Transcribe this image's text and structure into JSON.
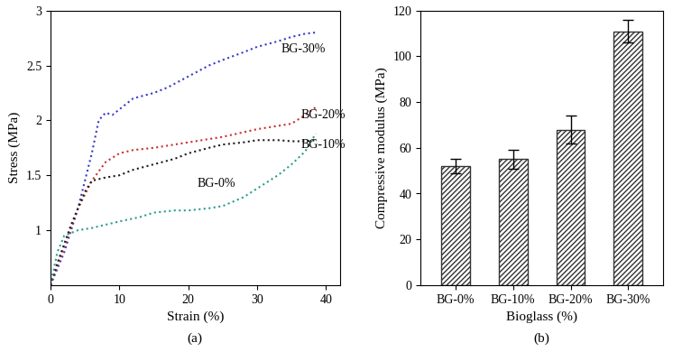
{
  "chart_data": [
    {
      "type": "line",
      "caption": "(a)",
      "x_label": "Strain (%)",
      "y_label": "Stress (MPa)",
      "xlim": [
        0,
        42
      ],
      "xticks": [
        0,
        10,
        20,
        30,
        40
      ],
      "ylim": [
        0.5,
        3
      ],
      "yticks": [
        1,
        1.5,
        2,
        2.5,
        3
      ],
      "line_style": "dotted",
      "series": [
        {
          "name": "BG-30%",
          "color": "#3a3ac8",
          "x": [
            0,
            2,
            4,
            6,
            7,
            8,
            9,
            10,
            12,
            15,
            17,
            20,
            23,
            25,
            28,
            30,
            33,
            35,
            37,
            38.5
          ],
          "values": [
            0.5,
            0.8,
            1.2,
            1.7,
            2.0,
            2.07,
            2.05,
            2.1,
            2.2,
            2.25,
            2.3,
            2.4,
            2.5,
            2.55,
            2.62,
            2.67,
            2.72,
            2.76,
            2.79,
            2.8
          ]
        },
        {
          "name": "BG-20%",
          "color": "#c83232",
          "x": [
            0,
            2,
            4,
            6,
            8,
            10,
            12,
            15,
            18,
            20,
            25,
            30,
            33,
            35,
            37,
            38.5
          ],
          "values": [
            0.5,
            0.85,
            1.2,
            1.45,
            1.62,
            1.7,
            1.73,
            1.75,
            1.78,
            1.8,
            1.85,
            1.92,
            1.95,
            1.97,
            2.05,
            2.12
          ]
        },
        {
          "name": "BG-10%",
          "color": "#1e1e1e",
          "x": [
            0,
            1,
            3,
            5,
            6,
            8,
            10,
            12,
            15,
            18,
            20,
            23,
            25,
            28,
            30,
            33,
            35,
            37,
            38.5
          ],
          "values": [
            0.5,
            0.7,
            1.05,
            1.35,
            1.45,
            1.48,
            1.5,
            1.55,
            1.6,
            1.65,
            1.7,
            1.75,
            1.78,
            1.8,
            1.82,
            1.82,
            1.81,
            1.81,
            1.82
          ]
        },
        {
          "name": "BG-0%",
          "color": "#2a9d8f",
          "x": [
            0,
            0.5,
            1,
            2,
            4,
            6,
            8,
            10,
            13,
            15,
            18,
            20,
            23,
            25,
            28,
            30,
            33,
            35,
            37,
            38.5
          ],
          "values": [
            0.5,
            0.65,
            0.8,
            0.95,
            1.0,
            1.02,
            1.05,
            1.08,
            1.12,
            1.16,
            1.18,
            1.18,
            1.2,
            1.22,
            1.3,
            1.38,
            1.5,
            1.6,
            1.72,
            1.88
          ]
        }
      ]
    },
    {
      "type": "bar",
      "caption": "(b)",
      "x_label": "Bioglass (%)",
      "y_label": "Compressive modulus (MPa)",
      "categories": [
        "BG-0%",
        "BG-10%",
        "BG-20%",
        "BG-30%"
      ],
      "values": [
        52,
        55,
        68,
        111
      ],
      "errors": [
        3,
        4,
        6,
        5
      ],
      "color": "#333333",
      "ylim": [
        0,
        120
      ],
      "yticks": [
        0,
        20,
        40,
        60,
        80,
        100,
        120
      ]
    }
  ]
}
